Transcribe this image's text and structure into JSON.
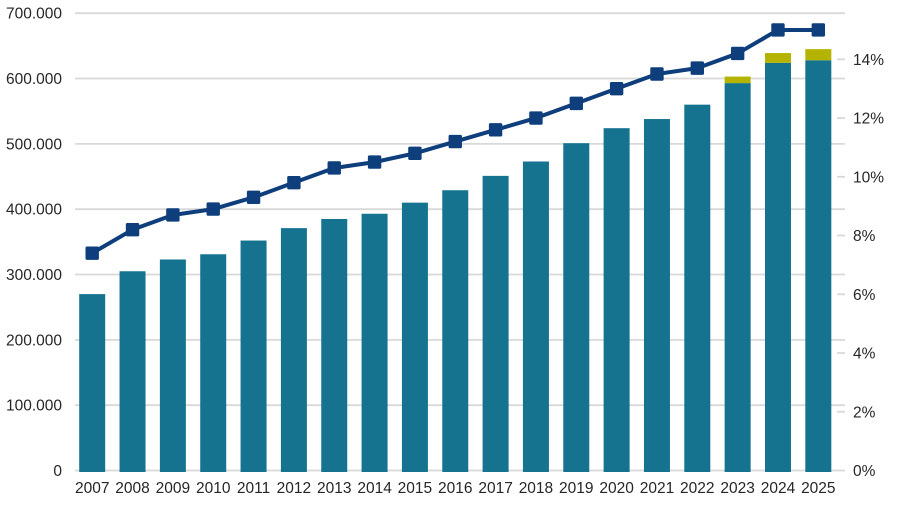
{
  "chart_data": {
    "type": "bar",
    "combo": "stacked-bar-plus-line",
    "title": "",
    "legend": "none",
    "grid": "horizontal",
    "categories": [
      "2007",
      "2008",
      "2009",
      "2010",
      "2011",
      "2012",
      "2013",
      "2014",
      "2015",
      "2016",
      "2017",
      "2018",
      "2019",
      "2020",
      "2021",
      "2022",
      "2023",
      "2024",
      "2025"
    ],
    "series": [
      {
        "name": "main-bar-total",
        "type": "bar",
        "axis": "left",
        "color_key": "teal",
        "values": [
          270000,
          305000,
          323000,
          331000,
          352000,
          371000,
          385000,
          393000,
          410000,
          429000,
          451000,
          473000,
          501000,
          524000,
          538000,
          560000,
          593000,
          624000,
          628000
        ]
      },
      {
        "name": "additional-top-segment",
        "type": "bar-stacked-top",
        "axis": "left",
        "color_key": "olive",
        "values": [
          0,
          0,
          0,
          0,
          0,
          0,
          0,
          0,
          0,
          0,
          0,
          0,
          0,
          0,
          0,
          0,
          10000,
          15000,
          17000
        ]
      },
      {
        "name": "share-percent-line",
        "type": "line",
        "axis": "right",
        "color_key": "navy",
        "values": [
          7.4,
          8.2,
          8.7,
          8.9,
          9.3,
          9.8,
          10.3,
          10.5,
          10.8,
          11.2,
          11.6,
          12.0,
          12.5,
          13.0,
          13.5,
          13.7,
          14.2,
          15.0,
          15.0
        ]
      }
    ],
    "left_axis": {
      "min": 0,
      "max": 700000,
      "tick_step": 100000,
      "tick_labels": [
        "0",
        "100.000",
        "200.000",
        "300.000",
        "400.000",
        "500.000",
        "600.000",
        "700.000"
      ]
    },
    "right_axis": {
      "min": 0,
      "max": 15.57,
      "tick_step": 2,
      "max_labeled_tick": 14,
      "tick_labels": [
        "0%",
        "2%",
        "4%",
        "6%",
        "8%",
        "10%",
        "12%",
        "14%"
      ]
    },
    "colors": {
      "teal": "#15738f",
      "olive": "#b4b400",
      "navy": "#0e3e7b",
      "gridline": "#d9d9d9",
      "text": "#262626"
    }
  }
}
